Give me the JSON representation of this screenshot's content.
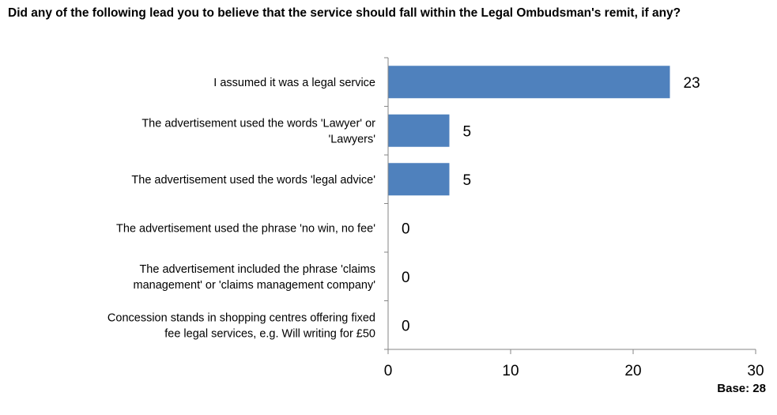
{
  "chart_data": {
    "type": "bar",
    "orientation": "horizontal",
    "title": "Did any of the following lead you to believe that the service should fall within the Legal Ombudsman's remit, if any?",
    "categories": [
      [
        "I assumed it was a legal service"
      ],
      [
        "The advertisement used the words 'Lawyer' or",
        "'Lawyers'"
      ],
      [
        "The advertisement used the words 'legal advice'"
      ],
      [
        "The advertisement used the phrase 'no win, no fee'"
      ],
      [
        "The advertisement included the phrase 'claims",
        "management' or 'claims management company'"
      ],
      [
        "Concession stands in shopping centres offering fixed",
        "fee legal services, e.g. Will writing for £50"
      ]
    ],
    "values": [
      23,
      5,
      5,
      0,
      0,
      0
    ],
    "xlim": [
      0,
      30
    ],
    "xticks": [
      0,
      10,
      20,
      30
    ],
    "bar_color": "#4F81BD",
    "grid": false,
    "base_note": "Base: 28"
  }
}
